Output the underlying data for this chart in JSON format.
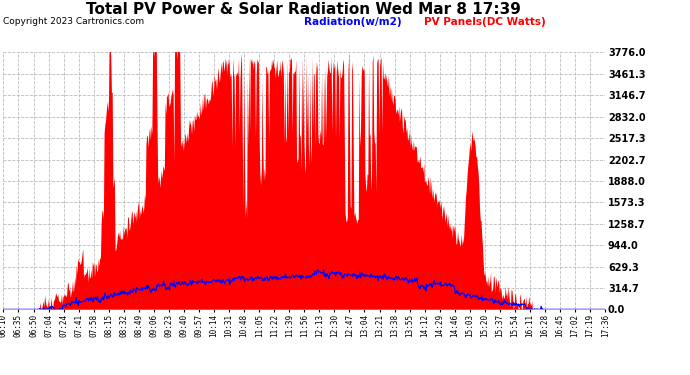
{
  "title": "Total PV Power & Solar Radiation Wed Mar 8 17:39",
  "copyright": "Copyright 2023 Cartronics.com",
  "legend_radiation": "Radiation(w/m2)",
  "legend_pv": "PV Panels(DC Watts)",
  "y_ticks": [
    0.0,
    314.7,
    629.3,
    944.0,
    1258.7,
    1573.3,
    1888.0,
    2202.7,
    2517.3,
    2832.0,
    3146.7,
    3461.3,
    3776.0
  ],
  "y_max": 3776.0,
  "y_min": 0.0,
  "background_color": "#ffffff",
  "plot_bg_color": "#ffffff",
  "grid_color": "#bbbbbb",
  "pv_color": "#ff0000",
  "radiation_color": "#0000ff",
  "title_fontsize": 11,
  "x_labels": [
    "06:10",
    "06:35",
    "06:50",
    "07:04",
    "07:24",
    "07:41",
    "07:58",
    "08:15",
    "08:32",
    "08:49",
    "09:06",
    "09:23",
    "09:40",
    "09:57",
    "10:14",
    "10:31",
    "10:48",
    "11:05",
    "11:22",
    "11:39",
    "11:56",
    "12:13",
    "12:30",
    "12:47",
    "13:04",
    "13:21",
    "13:38",
    "13:55",
    "14:12",
    "14:29",
    "14:46",
    "15:03",
    "15:20",
    "15:37",
    "15:54",
    "16:11",
    "16:28",
    "16:45",
    "17:02",
    "17:19",
    "17:36"
  ]
}
